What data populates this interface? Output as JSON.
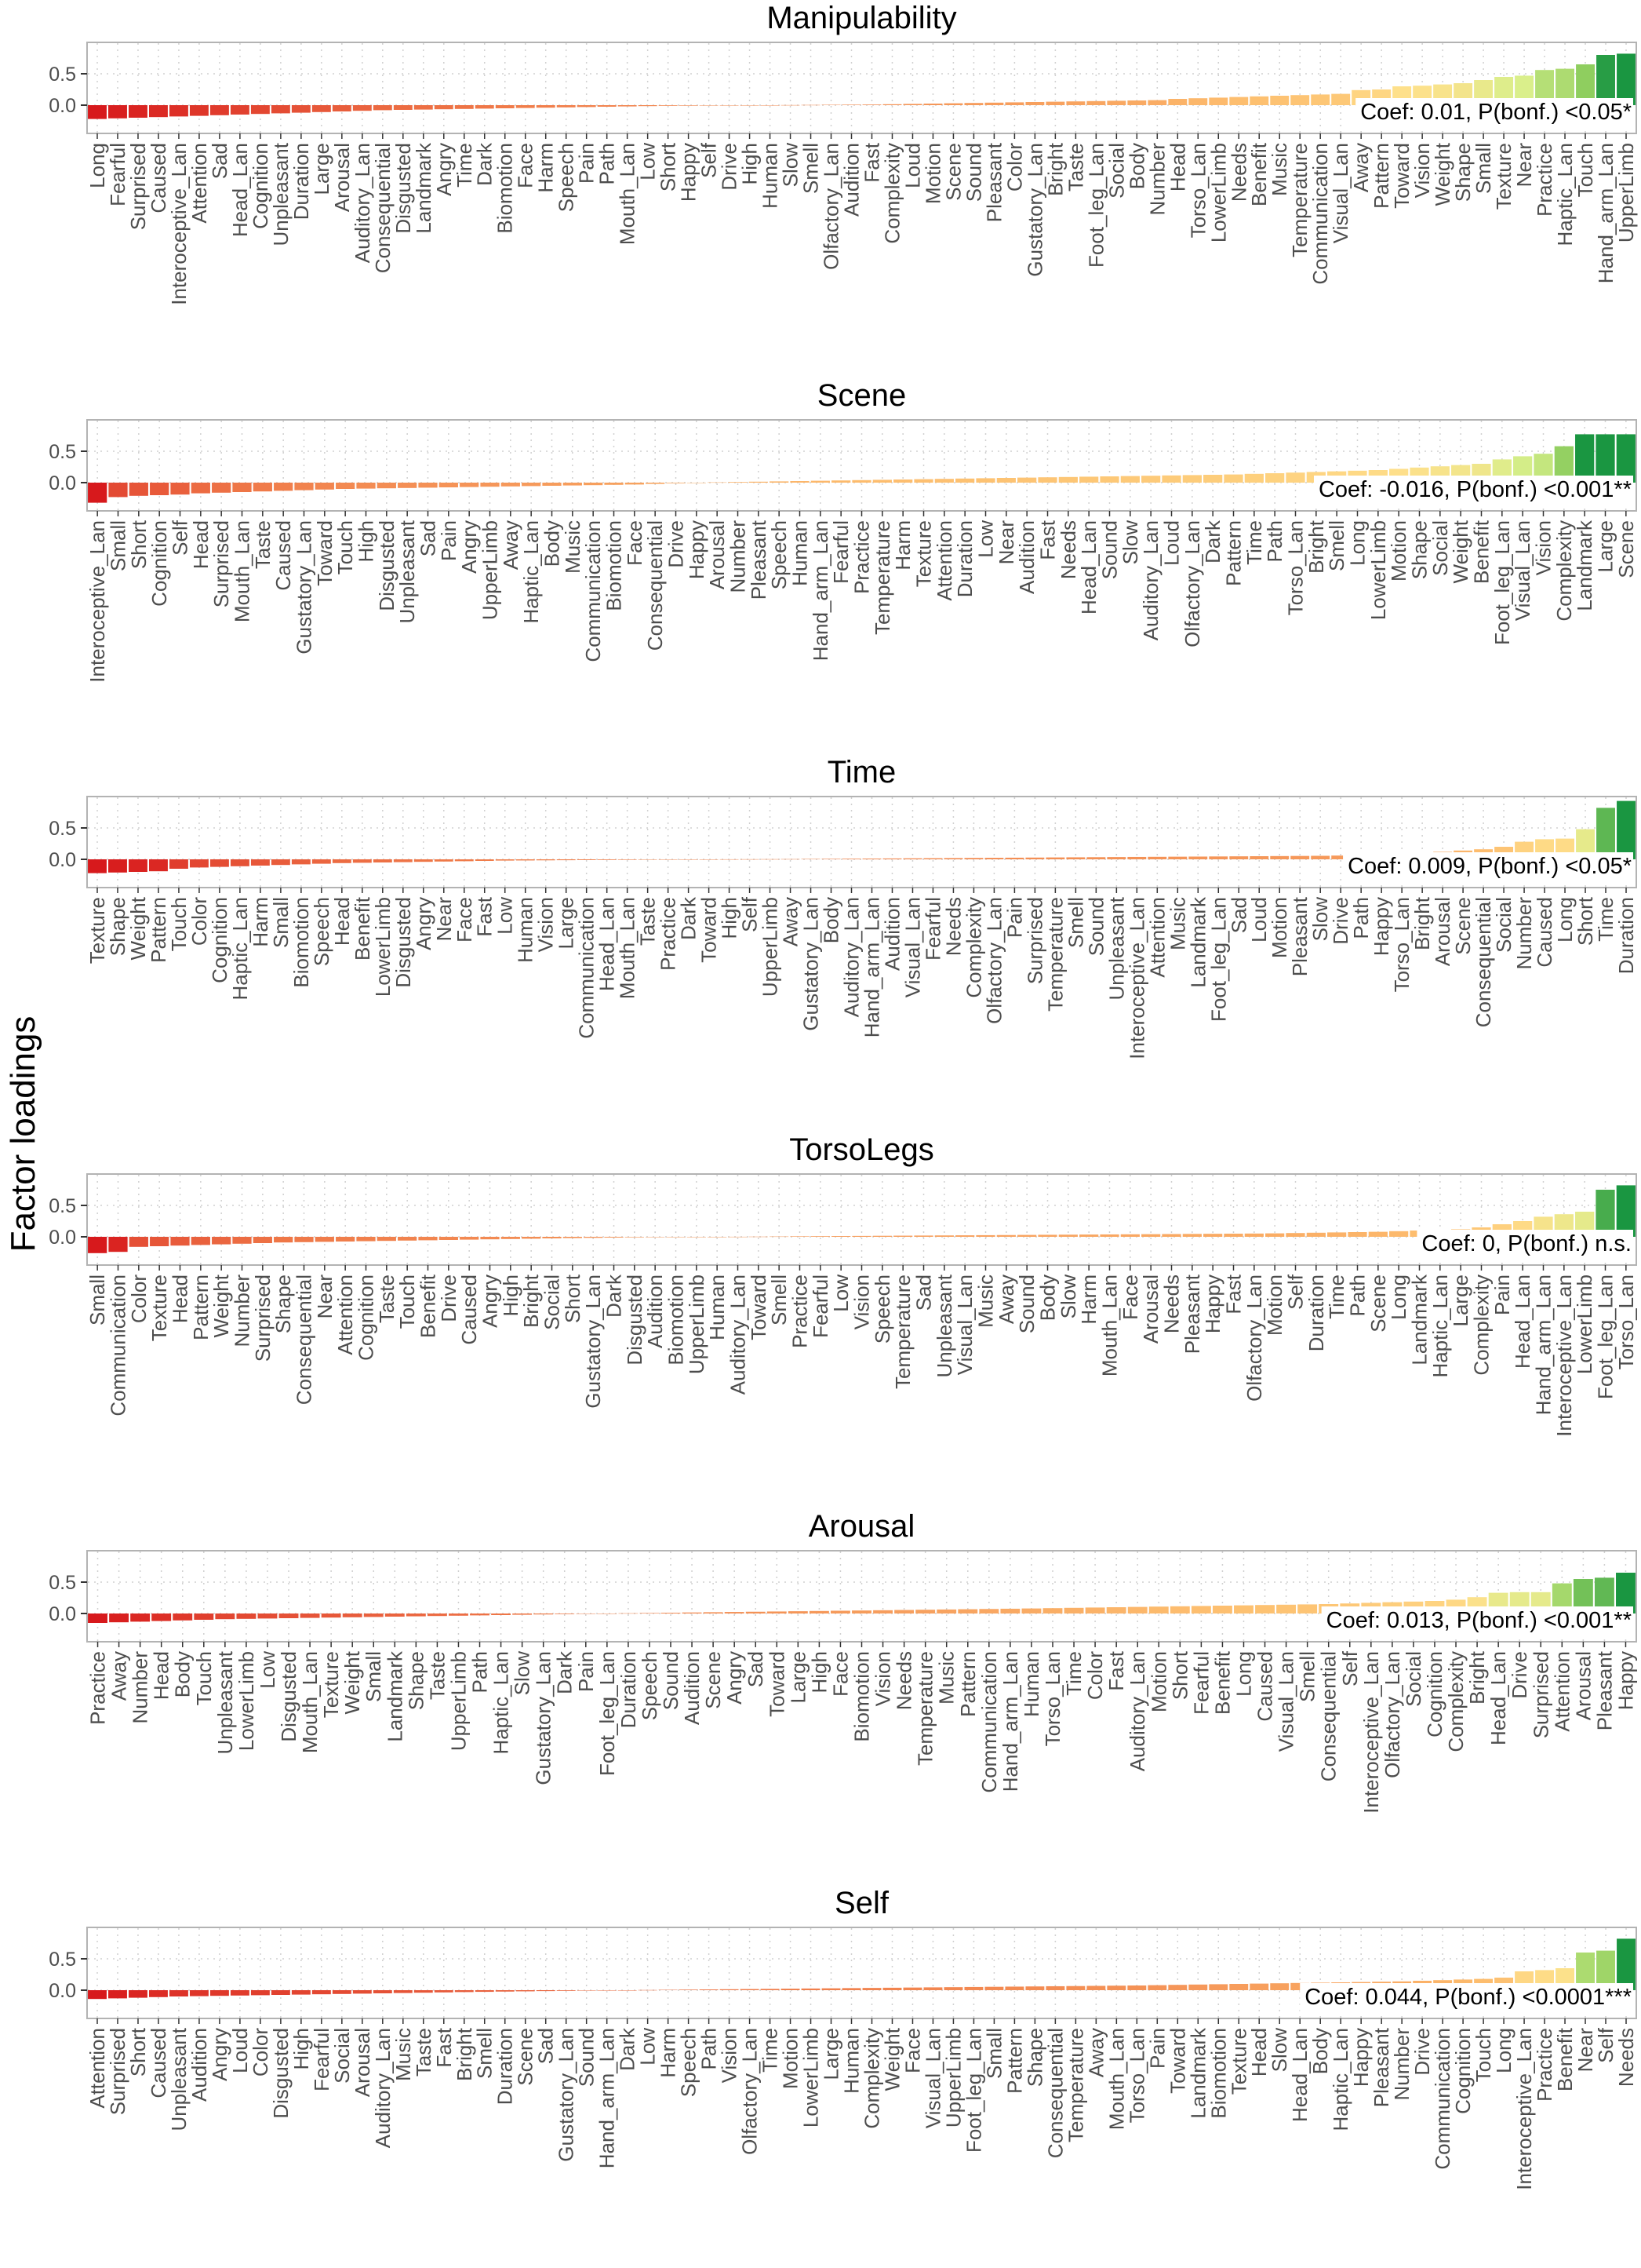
{
  "figure": {
    "ylabel": "Factor loadings",
    "gradient_colors": [
      "#d7191c",
      "#f07c4a",
      "#fdbd6e",
      "#fee08b",
      "#d9ef8b",
      "#91cf60",
      "#1a9641"
    ]
  },
  "chart_data": [
    {
      "type": "bar",
      "title": "Manipulability",
      "annotation": "Coef: 0.01, P(bonf.)  <0.05*",
      "ylim": [
        -0.45,
        1.0
      ],
      "yticks": [
        "0.5",
        "0.0"
      ],
      "ytick_values": [
        0.5,
        0.0
      ],
      "categories": [
        "Long",
        "Fearful",
        "Surprised",
        "Caused",
        "Interoceptive_Lan",
        "Attention",
        "Sad",
        "Head_Lan",
        "Cognition",
        "Unpleasant",
        "Duration",
        "Large",
        "Arousal",
        "Auditory_Lan",
        "Consequential",
        "Disgusted",
        "Landmark",
        "Angry",
        "Time",
        "Dark",
        "Biomotion",
        "Face",
        "Harm",
        "Speech",
        "Pain",
        "Path",
        "Mouth_Lan",
        "Low",
        "Short",
        "Happy",
        "Self",
        "Drive",
        "High",
        "Human",
        "Slow",
        "Smell",
        "Olfactory_Lan",
        "Audition",
        "Fast",
        "Complexity",
        "Loud",
        "Motion",
        "Scene",
        "Sound",
        "Pleasant",
        "Color",
        "Gustatory_Lan",
        "Bright",
        "Taste",
        "Foot_leg_Lan",
        "Social",
        "Body",
        "Number",
        "Head",
        "Torso_Lan",
        "LowerLimb",
        "Needs",
        "Benefit",
        "Music",
        "Temperature",
        "Communication",
        "Visual_Lan",
        "Away",
        "Pattern",
        "Toward",
        "Vision",
        "Weight",
        "Shape",
        "Small",
        "Texture",
        "Near",
        "Practice",
        "Haptic_Lan",
        "Touch",
        "Hand_arm_Lan",
        "UpperLimb"
      ],
      "values": [
        -0.22,
        -0.21,
        -0.2,
        -0.19,
        -0.18,
        -0.17,
        -0.16,
        -0.15,
        -0.14,
        -0.13,
        -0.12,
        -0.11,
        -0.1,
        -0.09,
        -0.08,
        -0.075,
        -0.07,
        -0.065,
        -0.06,
        -0.055,
        -0.05,
        -0.045,
        -0.04,
        -0.035,
        -0.03,
        -0.025,
        -0.02,
        -0.015,
        -0.01,
        -0.008,
        -0.006,
        -0.004,
        -0.002,
        0.0,
        0.002,
        0.004,
        0.006,
        0.008,
        0.01,
        0.015,
        0.02,
        0.025,
        0.03,
        0.035,
        0.04,
        0.045,
        0.05,
        0.055,
        0.06,
        0.065,
        0.07,
        0.075,
        0.08,
        0.1,
        0.11,
        0.12,
        0.13,
        0.14,
        0.15,
        0.16,
        0.17,
        0.18,
        0.24,
        0.25,
        0.3,
        0.31,
        0.33,
        0.35,
        0.4,
        0.45,
        0.47,
        0.56,
        0.58,
        0.65,
        0.8,
        0.82
      ]
    },
    {
      "type": "bar",
      "title": "Scene",
      "annotation": "Coef: -0.016, P(bonf.)  <0.001**",
      "ylim": [
        -0.45,
        1.0
      ],
      "yticks": [
        "0.5",
        "0.0"
      ],
      "ytick_values": [
        0.5,
        0.0
      ],
      "categories": [
        "Interoceptive_Lan",
        "Small",
        "Short",
        "Cognition",
        "Self",
        "Head",
        "Surprised",
        "Mouth_Lan",
        "Taste",
        "Caused",
        "Gustatory_Lan",
        "Toward",
        "Touch",
        "High",
        "Disgusted",
        "Unpleasant",
        "Sad",
        "Pain",
        "Angry",
        "UpperLimb",
        "Away",
        "Haptic_Lan",
        "Body",
        "Music",
        "Communication",
        "Biomotion",
        "Face",
        "Consequential",
        "Drive",
        "Happy",
        "Arousal",
        "Number",
        "Pleasant",
        "Speech",
        "Human",
        "Hand_arm_Lan",
        "Fearful",
        "Practice",
        "Temperature",
        "Harm",
        "Texture",
        "Attention",
        "Duration",
        "Low",
        "Near",
        "Audition",
        "Fast",
        "Needs",
        "Head_Lan",
        "Sound",
        "Slow",
        "Auditory_Lan",
        "Loud",
        "Olfactory_Lan",
        "Dark",
        "Pattern",
        "Time",
        "Path",
        "Torso_Lan",
        "Bright",
        "Smell",
        "Long",
        "LowerLimb",
        "Motion",
        "Shape",
        "Social",
        "Weight",
        "Benefit",
        "Foot_leg_Lan",
        "Visual_Lan",
        "Vision",
        "Complexity",
        "Landmark",
        "Large",
        "Scene"
      ],
      "values": [
        -0.32,
        -0.23,
        -0.21,
        -0.2,
        -0.19,
        -0.17,
        -0.16,
        -0.15,
        -0.14,
        -0.13,
        -0.12,
        -0.11,
        -0.1,
        -0.095,
        -0.09,
        -0.085,
        -0.08,
        -0.075,
        -0.07,
        -0.065,
        -0.06,
        -0.055,
        -0.05,
        -0.045,
        -0.04,
        -0.035,
        -0.03,
        -0.02,
        -0.01,
        0.0,
        0.005,
        0.01,
        0.015,
        0.02,
        0.025,
        0.03,
        0.035,
        0.04,
        0.045,
        0.05,
        0.055,
        0.06,
        0.065,
        0.07,
        0.075,
        0.08,
        0.085,
        0.09,
        0.095,
        0.1,
        0.105,
        0.11,
        0.115,
        0.12,
        0.125,
        0.13,
        0.14,
        0.15,
        0.16,
        0.17,
        0.18,
        0.19,
        0.2,
        0.22,
        0.24,
        0.26,
        0.28,
        0.3,
        0.37,
        0.42,
        0.46,
        0.58,
        0.77,
        0.77,
        0.77
      ]
    },
    {
      "type": "bar",
      "title": "Time",
      "annotation": "Coef: 0.009, P(bonf.)  <0.05*",
      "ylim": [
        -0.45,
        1.0
      ],
      "yticks": [
        "0.5",
        "0.0"
      ],
      "ytick_values": [
        0.5,
        0.0
      ],
      "categories": [
        "Texture",
        "Shape",
        "Weight",
        "Pattern",
        "Touch",
        "Color",
        "Cognition",
        "Haptic_Lan",
        "Harm",
        "Small",
        "Biomotion",
        "Speech",
        "Head",
        "Benefit",
        "LowerLimb",
        "Disgusted",
        "Angry",
        "Near",
        "Face",
        "Fast",
        "Low",
        "Human",
        "Vision",
        "Large",
        "Communication",
        "Head_Lan",
        "Mouth_Lan",
        "Taste",
        "Practice",
        "Dark",
        "Toward",
        "High",
        "Self",
        "UpperLimb",
        "Away",
        "Gustatory_Lan",
        "Body",
        "Auditory_Lan",
        "Hand_arm_Lan",
        "Audition",
        "Visual_Lan",
        "Fearful",
        "Needs",
        "Complexity",
        "Olfactory_Lan",
        "Pain",
        "Surprised",
        "Temperature",
        "Smell",
        "Sound",
        "Unpleasant",
        "Interoceptive_Lan",
        "Attention",
        "Music",
        "Landmark",
        "Foot_leg_Lan",
        "Sad",
        "Loud",
        "Motion",
        "Pleasant",
        "Slow",
        "Drive",
        "Path",
        "Happy",
        "Torso_Lan",
        "Bright",
        "Arousal",
        "Scene",
        "Consequential",
        "Social",
        "Number",
        "Caused",
        "Long",
        "Short",
        "Time",
        "Duration"
      ],
      "values": [
        -0.22,
        -0.21,
        -0.2,
        -0.19,
        -0.15,
        -0.13,
        -0.12,
        -0.11,
        -0.1,
        -0.09,
        -0.08,
        -0.07,
        -0.06,
        -0.055,
        -0.05,
        -0.045,
        -0.04,
        -0.035,
        -0.03,
        -0.025,
        -0.02,
        -0.018,
        -0.016,
        -0.014,
        -0.012,
        -0.01,
        -0.008,
        -0.006,
        -0.004,
        -0.002,
        0.0,
        0.001,
        0.002,
        0.003,
        0.004,
        0.006,
        0.008,
        0.01,
        0.012,
        0.014,
        0.016,
        0.018,
        0.02,
        0.022,
        0.024,
        0.026,
        0.028,
        0.03,
        0.032,
        0.034,
        0.036,
        0.038,
        0.04,
        0.042,
        0.044,
        0.046,
        0.048,
        0.05,
        0.052,
        0.054,
        0.056,
        0.06,
        0.065,
        0.07,
        0.08,
        0.1,
        0.12,
        0.14,
        0.16,
        0.2,
        0.28,
        0.32,
        0.33,
        0.48,
        0.82,
        0.93
      ]
    },
    {
      "type": "bar",
      "title": "TorsoLegs",
      "annotation": "Coef: 0, P(bonf.)  n.s.",
      "ylim": [
        -0.45,
        1.0
      ],
      "yticks": [
        "0.5",
        "0.0"
      ],
      "ytick_values": [
        0.5,
        0.0
      ],
      "categories": [
        "Small",
        "Communication",
        "Color",
        "Texture",
        "Head",
        "Pattern",
        "Weight",
        "Number",
        "Surprised",
        "Shape",
        "Consequential",
        "Near",
        "Attention",
        "Cognition",
        "Taste",
        "Touch",
        "Benefit",
        "Drive",
        "Caused",
        "Angry",
        "High",
        "Bright",
        "Social",
        "Short",
        "Gustatory_Lan",
        "Dark",
        "Disgusted",
        "Audition",
        "Biomotion",
        "UpperLimb",
        "Human",
        "Auditory_Lan",
        "Toward",
        "Smell",
        "Practice",
        "Fearful",
        "Low",
        "Vision",
        "Speech",
        "Temperature",
        "Sad",
        "Unpleasant",
        "Visual_Lan",
        "Music",
        "Away",
        "Sound",
        "Body",
        "Slow",
        "Harm",
        "Mouth_Lan",
        "Face",
        "Arousal",
        "Needs",
        "Pleasant",
        "Happy",
        "Fast",
        "Olfactory_Lan",
        "Motion",
        "Self",
        "Duration",
        "Time",
        "Path",
        "Scene",
        "Long",
        "Landmark",
        "Haptic_Lan",
        "Large",
        "Complexity",
        "Pain",
        "Head_Lan",
        "Hand_arm_Lan",
        "Interoceptive_Lan",
        "LowerLimb",
        "Foot_leg_Lan",
        "Torso_Lan"
      ],
      "values": [
        -0.26,
        -0.24,
        -0.16,
        -0.15,
        -0.14,
        -0.13,
        -0.12,
        -0.11,
        -0.1,
        -0.09,
        -0.085,
        -0.08,
        -0.075,
        -0.07,
        -0.065,
        -0.06,
        -0.055,
        -0.05,
        -0.045,
        -0.04,
        -0.035,
        -0.03,
        -0.025,
        -0.02,
        -0.016,
        -0.012,
        -0.008,
        -0.005,
        -0.003,
        -0.001,
        0.0,
        0.001,
        0.003,
        0.005,
        0.008,
        0.01,
        0.012,
        0.014,
        0.016,
        0.018,
        0.02,
        0.022,
        0.024,
        0.026,
        0.028,
        0.03,
        0.032,
        0.034,
        0.036,
        0.038,
        0.04,
        0.042,
        0.044,
        0.046,
        0.048,
        0.05,
        0.052,
        0.055,
        0.06,
        0.065,
        0.07,
        0.075,
        0.08,
        0.09,
        0.1,
        0.11,
        0.12,
        0.15,
        0.2,
        0.25,
        0.32,
        0.36,
        0.4,
        0.75,
        0.82
      ]
    },
    {
      "type": "bar",
      "title": "Arousal",
      "annotation": "Coef: 0.013, P(bonf.)  <0.001**",
      "ylim": [
        -0.45,
        1.0
      ],
      "yticks": [
        "0.5",
        "0.0"
      ],
      "ytick_values": [
        0.5,
        0.0
      ],
      "categories": [
        "Practice",
        "Away",
        "Number",
        "Head",
        "Body",
        "Touch",
        "Unpleasant",
        "LowerLimb",
        "Low",
        "Disgusted",
        "Mouth_Lan",
        "Texture",
        "Weight",
        "Small",
        "Landmark",
        "Shape",
        "Taste",
        "UpperLimb",
        "Path",
        "Haptic_Lan",
        "Slow",
        "Gustatory_Lan",
        "Dark",
        "Pain",
        "Foot_leg_Lan",
        "Duration",
        "Speech",
        "Sound",
        "Audition",
        "Scene",
        "Angry",
        "Sad",
        "Toward",
        "Large",
        "High",
        "Face",
        "Biomotion",
        "Vision",
        "Needs",
        "Temperature",
        "Music",
        "Pattern",
        "Communication",
        "Hand_arm_Lan",
        "Human",
        "Torso_Lan",
        "Time",
        "Color",
        "Fast",
        "Auditory_Lan",
        "Motion",
        "Short",
        "Fearful",
        "Benefit",
        "Long",
        "Caused",
        "Visual_Lan",
        "Smell",
        "Consequential",
        "Self",
        "Interoceptive_Lan",
        "Olfactory_Lan",
        "Social",
        "Cognition",
        "Complexity",
        "Bright",
        "Head_Lan",
        "Drive",
        "Surprised",
        "Attention",
        "Arousal",
        "Pleasant",
        "Happy"
      ],
      "values": [
        -0.15,
        -0.14,
        -0.13,
        -0.12,
        -0.11,
        -0.1,
        -0.09,
        -0.085,
        -0.08,
        -0.075,
        -0.07,
        -0.065,
        -0.06,
        -0.055,
        -0.05,
        -0.045,
        -0.04,
        -0.035,
        -0.03,
        -0.025,
        -0.02,
        -0.015,
        -0.01,
        -0.005,
        0.0,
        0.004,
        0.008,
        0.012,
        0.016,
        0.02,
        0.024,
        0.028,
        0.032,
        0.036,
        0.04,
        0.044,
        0.048,
        0.052,
        0.056,
        0.06,
        0.064,
        0.068,
        0.072,
        0.076,
        0.08,
        0.085,
        0.09,
        0.095,
        0.1,
        0.105,
        0.11,
        0.115,
        0.12,
        0.125,
        0.13,
        0.135,
        0.14,
        0.145,
        0.15,
        0.16,
        0.17,
        0.18,
        0.19,
        0.2,
        0.22,
        0.26,
        0.33,
        0.34,
        0.34,
        0.48,
        0.55,
        0.57,
        0.65
      ]
    },
    {
      "type": "bar",
      "title": "Self",
      "annotation": "Coef: 0.044, P(bonf.)  <0.0001***",
      "ylim": [
        -0.45,
        1.0
      ],
      "yticks": [
        "0.5",
        "0.0"
      ],
      "ytick_values": [
        0.5,
        0.0
      ],
      "categories": [
        "Attention",
        "Surprised",
        "Short",
        "Caused",
        "Unpleasant",
        "Audition",
        "Angry",
        "Loud",
        "Color",
        "Disgusted",
        "High",
        "Fearful",
        "Social",
        "Arousal",
        "Auditory_Lan",
        "Music",
        "Taste",
        "Fast",
        "Bright",
        "Smell",
        "Duration",
        "Scene",
        "Sad",
        "Gustatory_Lan",
        "Sound",
        "Hand_arm_Lan",
        "Dark",
        "Low",
        "Harm",
        "Speech",
        "Path",
        "Vision",
        "Olfactory_Lan",
        "Time",
        "Motion",
        "LowerLimb",
        "Large",
        "Human",
        "Complexity",
        "Weight",
        "Face",
        "Visual_Lan",
        "UpperLimb",
        "Foot_leg_Lan",
        "Small",
        "Pattern",
        "Shape",
        "Consequential",
        "Temperature",
        "Away",
        "Mouth_Lan",
        "Torso_Lan",
        "Pain",
        "Toward",
        "Landmark",
        "Biomotion",
        "Texture",
        "Head",
        "Slow",
        "Head_Lan",
        "Body",
        "Haptic_Lan",
        "Happy",
        "Pleasant",
        "Number",
        "Drive",
        "Communication",
        "Cognition",
        "Touch",
        "Long",
        "Interoceptive_Lan",
        "Practice",
        "Benefit",
        "Near",
        "Self",
        "Needs"
      ],
      "values": [
        -0.14,
        -0.13,
        -0.12,
        -0.11,
        -0.1,
        -0.095,
        -0.09,
        -0.085,
        -0.08,
        -0.075,
        -0.07,
        -0.065,
        -0.06,
        -0.055,
        -0.05,
        -0.045,
        -0.04,
        -0.035,
        -0.03,
        -0.026,
        -0.022,
        -0.018,
        -0.014,
        -0.01,
        -0.006,
        -0.003,
        0.0,
        0.003,
        0.006,
        0.009,
        0.012,
        0.015,
        0.018,
        0.021,
        0.024,
        0.027,
        0.03,
        0.033,
        0.036,
        0.039,
        0.042,
        0.045,
        0.048,
        0.051,
        0.054,
        0.057,
        0.06,
        0.063,
        0.066,
        0.069,
        0.072,
        0.075,
        0.08,
        0.085,
        0.09,
        0.095,
        0.1,
        0.105,
        0.11,
        0.115,
        0.12,
        0.125,
        0.13,
        0.135,
        0.14,
        0.15,
        0.16,
        0.17,
        0.18,
        0.2,
        0.3,
        0.32,
        0.35,
        0.6,
        0.63,
        0.82
      ]
    }
  ]
}
